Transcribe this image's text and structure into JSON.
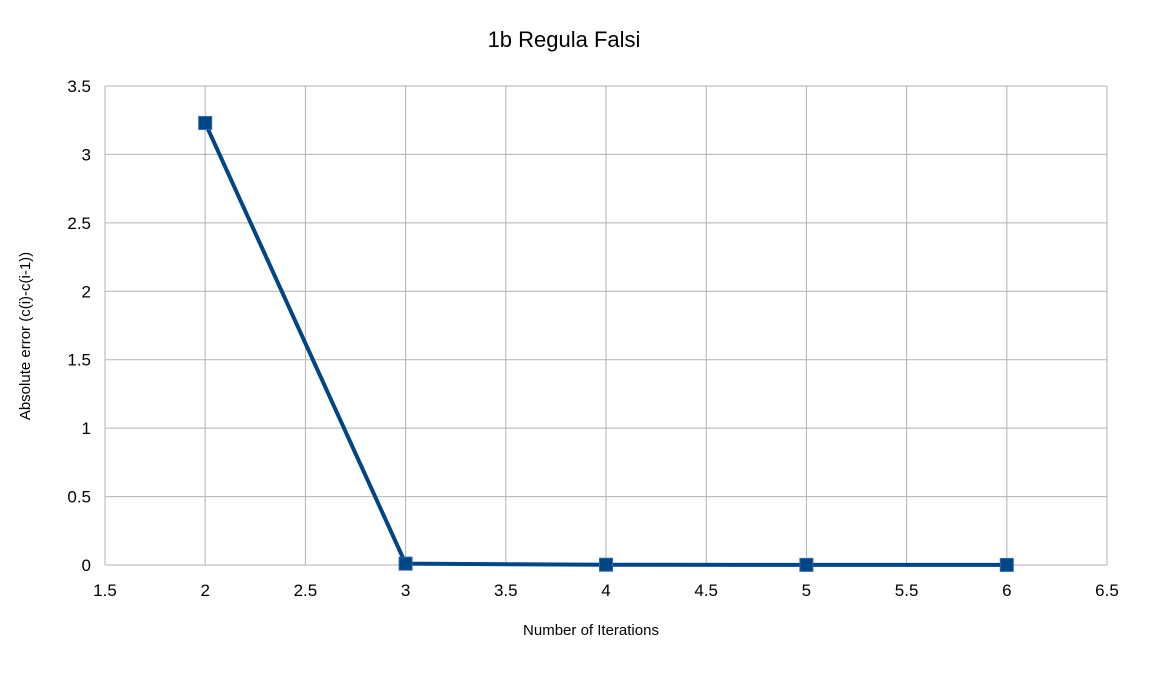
{
  "chart_data": {
    "type": "line",
    "title": "1b Regula Falsi",
    "xlabel": "Number of Iterations",
    "ylabel": "Absolute error (c(i)-c(i-1))",
    "xlim": [
      1.5,
      6.5
    ],
    "ylim": [
      0,
      3.5
    ],
    "xticks": [
      "1.5",
      "2",
      "2.5",
      "3",
      "3.5",
      "4",
      "4.5",
      "5",
      "5.5",
      "6",
      "6.5"
    ],
    "yticks": [
      "0",
      "0.5",
      "1",
      "1.5",
      "2",
      "2.5",
      "3",
      "3.5"
    ],
    "grid": true,
    "legend": "none",
    "series": [
      {
        "x": [
          2,
          3,
          4,
          5,
          6
        ],
        "values": [
          3.23,
          0.01,
          0.002,
          0.001,
          0.0005
        ],
        "color": "#004586",
        "marker": "square"
      }
    ]
  }
}
